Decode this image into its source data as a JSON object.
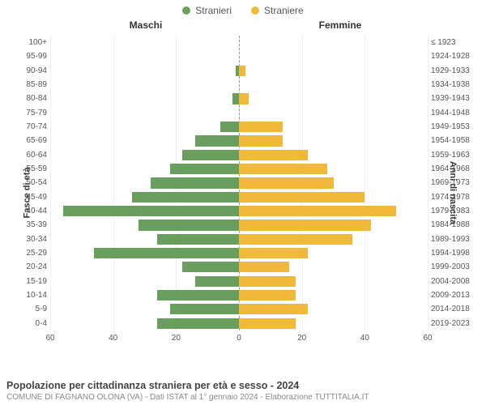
{
  "legend": {
    "male": {
      "label": "Stranieri",
      "color": "#6a9e5f"
    },
    "female": {
      "label": "Straniere",
      "color": "#f0b93a"
    }
  },
  "panels": {
    "left": "Maschi",
    "right": "Femmine"
  },
  "axis_titles": {
    "left": "Fasce di età",
    "right": "Anni di nascita"
  },
  "chart": {
    "type": "population-pyramid",
    "xmax": 60,
    "xticks_left": [
      60,
      40,
      20,
      0
    ],
    "xticks_right": [
      0,
      20,
      40,
      60
    ],
    "grid_step": 20,
    "background_color": "#ffffff",
    "grid_color": "#eeeeee",
    "center_line_color": "#999999",
    "label_fontsize": 10,
    "bar_height_ratio": 0.76,
    "rows": [
      {
        "age": "100+",
        "birth": "≤ 1923",
        "m": 0,
        "f": 0
      },
      {
        "age": "95-99",
        "birth": "1924-1928",
        "m": 0,
        "f": 0
      },
      {
        "age": "90-94",
        "birth": "1929-1933",
        "m": 1,
        "f": 2
      },
      {
        "age": "85-89",
        "birth": "1934-1938",
        "m": 0,
        "f": 0
      },
      {
        "age": "80-84",
        "birth": "1939-1943",
        "m": 2,
        "f": 3
      },
      {
        "age": "75-79",
        "birth": "1944-1948",
        "m": 0,
        "f": 0
      },
      {
        "age": "70-74",
        "birth": "1949-1953",
        "m": 6,
        "f": 14
      },
      {
        "age": "65-69",
        "birth": "1954-1958",
        "m": 14,
        "f": 14
      },
      {
        "age": "60-64",
        "birth": "1959-1963",
        "m": 18,
        "f": 22
      },
      {
        "age": "55-59",
        "birth": "1964-1968",
        "m": 22,
        "f": 28
      },
      {
        "age": "50-54",
        "birth": "1969-1973",
        "m": 28,
        "f": 30
      },
      {
        "age": "45-49",
        "birth": "1974-1978",
        "m": 34,
        "f": 40
      },
      {
        "age": "40-44",
        "birth": "1979-1983",
        "m": 56,
        "f": 50
      },
      {
        "age": "35-39",
        "birth": "1984-1988",
        "m": 32,
        "f": 42
      },
      {
        "age": "30-34",
        "birth": "1989-1993",
        "m": 26,
        "f": 36
      },
      {
        "age": "25-29",
        "birth": "1994-1998",
        "m": 46,
        "f": 22
      },
      {
        "age": "20-24",
        "birth": "1999-2003",
        "m": 18,
        "f": 16
      },
      {
        "age": "15-19",
        "birth": "2004-2008",
        "m": 14,
        "f": 18
      },
      {
        "age": "10-14",
        "birth": "2009-2013",
        "m": 26,
        "f": 18
      },
      {
        "age": "5-9",
        "birth": "2014-2018",
        "m": 22,
        "f": 22
      },
      {
        "age": "0-4",
        "birth": "2019-2023",
        "m": 26,
        "f": 18
      }
    ]
  },
  "footer": {
    "title": "Popolazione per cittadinanza straniera per età e sesso - 2024",
    "subtitle": "COMUNE DI FAGNANO OLONA (VA) - Dati ISTAT al 1° gennaio 2024 - Elaborazione TUTTITALIA.IT"
  }
}
